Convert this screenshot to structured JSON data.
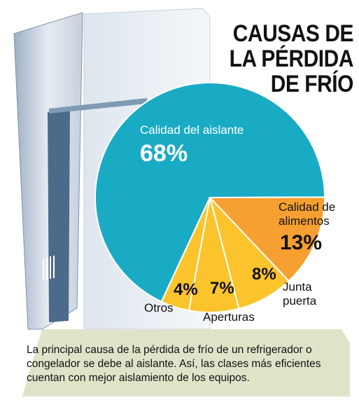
{
  "chart_data": {
    "type": "pie",
    "title": "CAUSAS DE LA PÉRDIDA DE FRÍO",
    "categories": [
      "Calidad del aislante",
      "Calidad de alimentos",
      "Junta puerta",
      "Aperturas",
      "Otros"
    ],
    "values": [
      68,
      13,
      8,
      7,
      4
    ],
    "value_labels": [
      "68%",
      "13%",
      "8%",
      "7%",
      "4%"
    ],
    "colors": [
      "#1aabc4",
      "#f5a030",
      "#fcc42c",
      "#fcc42c",
      "#fcc42c"
    ],
    "caption": "La principal causa de la pérdida de frío de un refrigerador o congelador se debe al aislante. Así, las clases más eficientes cuentan con mejor aislamiento de los equipos."
  }
}
